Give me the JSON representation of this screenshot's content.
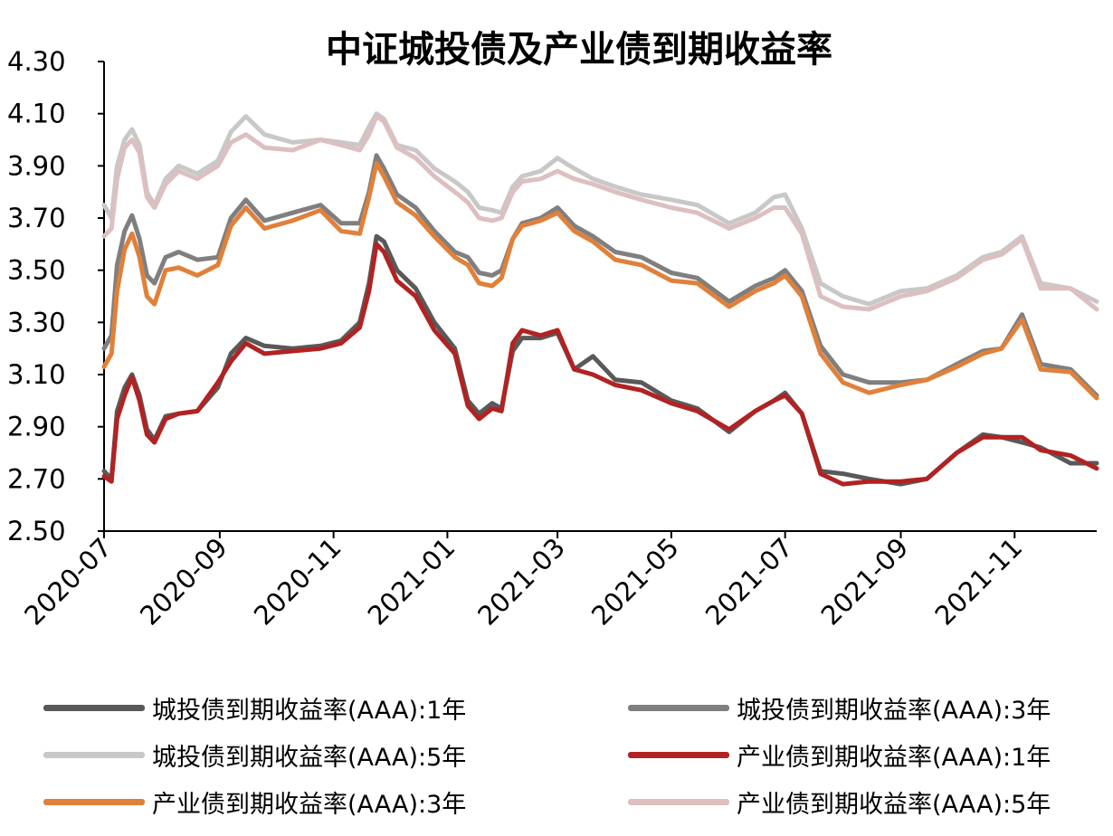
{
  "chart_data": {
    "type": "line",
    "title": "中证城投债及产业债到期收益率",
    "xlabel": "",
    "ylabel": "",
    "ylim": [
      2.5,
      4.3
    ],
    "yticks": [
      "2.50",
      "2.70",
      "2.90",
      "3.10",
      "3.30",
      "3.50",
      "3.70",
      "3.90",
      "4.10",
      "4.30"
    ],
    "xticks": [
      "2020-07",
      "2020-09",
      "2020-11",
      "2021-01",
      "2021-03",
      "2021-05",
      "2021-07",
      "2021-09",
      "2021-11"
    ],
    "xrange": [
      "2020-07-01",
      "2021-12-15"
    ],
    "grid": false,
    "legend_position": "bottom",
    "series": [
      {
        "name": "城投债到期收益率(AAA):1年",
        "color": "#595959",
        "x": [
          "2020-07-01",
          "2020-07-05",
          "2020-07-08",
          "2020-07-12",
          "2020-07-16",
          "2020-07-20",
          "2020-07-24",
          "2020-07-28",
          "2020-08-03",
          "2020-08-10",
          "2020-08-20",
          "2020-08-31",
          "2020-09-07",
          "2020-09-15",
          "2020-09-25",
          "2020-10-10",
          "2020-10-25",
          "2020-11-05",
          "2020-11-15",
          "2020-11-20",
          "2020-11-24",
          "2020-11-28",
          "2020-12-05",
          "2020-12-15",
          "2020-12-25",
          "2021-01-05",
          "2021-01-12",
          "2021-01-18",
          "2021-01-25",
          "2021-01-30",
          "2021-02-05",
          "2021-02-10",
          "2021-02-20",
          "2021-03-01",
          "2021-03-10",
          "2021-03-20",
          "2021-04-01",
          "2021-04-15",
          "2021-05-01",
          "2021-05-15",
          "2021-06-01",
          "2021-06-15",
          "2021-06-25",
          "2021-07-01",
          "2021-07-10",
          "2021-07-20",
          "2021-08-01",
          "2021-08-15",
          "2021-09-01",
          "2021-09-15",
          "2021-10-01",
          "2021-10-15",
          "2021-10-25",
          "2021-11-05",
          "2021-11-15",
          "2021-12-01",
          "2021-12-15"
        ],
        "y": [
          2.73,
          2.7,
          2.96,
          3.05,
          3.1,
          3.02,
          2.89,
          2.85,
          2.94,
          2.95,
          2.96,
          3.05,
          3.18,
          3.24,
          3.21,
          3.2,
          3.21,
          3.23,
          3.3,
          3.45,
          3.63,
          3.61,
          3.5,
          3.43,
          3.3,
          3.2,
          3.0,
          2.95,
          2.99,
          2.97,
          3.19,
          3.24,
          3.24,
          3.26,
          3.12,
          3.17,
          3.08,
          3.07,
          3.0,
          2.97,
          2.88,
          2.96,
          3.0,
          3.03,
          2.95,
          2.73,
          2.72,
          2.7,
          2.68,
          2.7,
          2.8,
          2.87,
          2.86,
          2.84,
          2.82,
          2.76,
          2.76
        ]
      },
      {
        "name": "城投债到期收益率(AAA):3年",
        "color": "#7f7f7f",
        "x": [
          "2020-07-01",
          "2020-07-05",
          "2020-07-08",
          "2020-07-12",
          "2020-07-16",
          "2020-07-20",
          "2020-07-24",
          "2020-07-28",
          "2020-08-03",
          "2020-08-10",
          "2020-08-20",
          "2020-08-31",
          "2020-09-07",
          "2020-09-15",
          "2020-09-25",
          "2020-10-10",
          "2020-10-25",
          "2020-11-05",
          "2020-11-15",
          "2020-11-20",
          "2020-11-24",
          "2020-11-28",
          "2020-12-05",
          "2020-12-15",
          "2020-12-25",
          "2021-01-05",
          "2021-01-12",
          "2021-01-18",
          "2021-01-25",
          "2021-01-30",
          "2021-02-05",
          "2021-02-10",
          "2021-02-20",
          "2021-03-01",
          "2021-03-10",
          "2021-03-20",
          "2021-04-01",
          "2021-04-15",
          "2021-05-01",
          "2021-05-15",
          "2021-06-01",
          "2021-06-15",
          "2021-06-25",
          "2021-07-01",
          "2021-07-10",
          "2021-07-20",
          "2021-08-01",
          "2021-08-15",
          "2021-09-01",
          "2021-09-15",
          "2021-10-01",
          "2021-10-15",
          "2021-10-25",
          "2021-11-05",
          "2021-11-15",
          "2021-12-01",
          "2021-12-15"
        ],
        "y": [
          3.2,
          3.25,
          3.52,
          3.65,
          3.71,
          3.62,
          3.48,
          3.45,
          3.55,
          3.57,
          3.54,
          3.55,
          3.7,
          3.77,
          3.69,
          3.72,
          3.75,
          3.68,
          3.68,
          3.8,
          3.94,
          3.89,
          3.79,
          3.74,
          3.65,
          3.57,
          3.55,
          3.49,
          3.48,
          3.5,
          3.62,
          3.68,
          3.7,
          3.74,
          3.67,
          3.63,
          3.57,
          3.55,
          3.49,
          3.47,
          3.38,
          3.44,
          3.47,
          3.5,
          3.42,
          3.21,
          3.1,
          3.07,
          3.07,
          3.08,
          3.14,
          3.19,
          3.2,
          3.33,
          3.14,
          3.12,
          3.02
        ]
      },
      {
        "name": "城投债到期收益率(AAA):5年",
        "color": "#c8c8c8",
        "x": [
          "2020-07-01",
          "2020-07-05",
          "2020-07-08",
          "2020-07-12",
          "2020-07-16",
          "2020-07-20",
          "2020-07-24",
          "2020-07-28",
          "2020-08-03",
          "2020-08-10",
          "2020-08-20",
          "2020-08-31",
          "2020-09-07",
          "2020-09-15",
          "2020-09-25",
          "2020-10-10",
          "2020-10-25",
          "2020-11-05",
          "2020-11-15",
          "2020-11-20",
          "2020-11-24",
          "2020-11-28",
          "2020-12-05",
          "2020-12-15",
          "2020-12-25",
          "2021-01-05",
          "2021-01-12",
          "2021-01-18",
          "2021-01-25",
          "2021-01-30",
          "2021-02-05",
          "2021-02-10",
          "2021-02-20",
          "2021-03-01",
          "2021-03-10",
          "2021-03-20",
          "2021-04-01",
          "2021-04-15",
          "2021-05-01",
          "2021-05-15",
          "2021-06-01",
          "2021-06-15",
          "2021-06-25",
          "2021-07-01",
          "2021-07-10",
          "2021-07-20",
          "2021-08-01",
          "2021-08-15",
          "2021-09-01",
          "2021-09-15",
          "2021-10-01",
          "2021-10-15",
          "2021-10-25",
          "2021-11-05",
          "2021-11-15",
          "2021-12-01",
          "2021-12-15"
        ],
        "y": [
          3.75,
          3.7,
          3.9,
          4.0,
          4.04,
          3.98,
          3.8,
          3.75,
          3.85,
          3.9,
          3.87,
          3.92,
          4.03,
          4.09,
          4.02,
          3.99,
          4.0,
          3.99,
          3.98,
          4.05,
          4.1,
          4.08,
          3.98,
          3.96,
          3.89,
          3.84,
          3.8,
          3.74,
          3.73,
          3.72,
          3.82,
          3.86,
          3.88,
          3.93,
          3.89,
          3.85,
          3.82,
          3.79,
          3.77,
          3.75,
          3.68,
          3.72,
          3.78,
          3.79,
          3.66,
          3.45,
          3.4,
          3.37,
          3.42,
          3.43,
          3.48,
          3.55,
          3.57,
          3.63,
          3.45,
          3.43,
          3.38
        ]
      },
      {
        "name": "产业债到期收益率(AAA):1年",
        "color": "#b22222",
        "x": [
          "2020-07-01",
          "2020-07-05",
          "2020-07-08",
          "2020-07-12",
          "2020-07-16",
          "2020-07-20",
          "2020-07-24",
          "2020-07-28",
          "2020-08-03",
          "2020-08-10",
          "2020-08-20",
          "2020-08-31",
          "2020-09-07",
          "2020-09-15",
          "2020-09-25",
          "2020-10-10",
          "2020-10-25",
          "2020-11-05",
          "2020-11-15",
          "2020-11-20",
          "2020-11-24",
          "2020-11-28",
          "2020-12-05",
          "2020-12-15",
          "2020-12-25",
          "2021-01-05",
          "2021-01-12",
          "2021-01-18",
          "2021-01-25",
          "2021-01-30",
          "2021-02-05",
          "2021-02-10",
          "2021-02-20",
          "2021-03-01",
          "2021-03-10",
          "2021-03-20",
          "2021-04-01",
          "2021-04-15",
          "2021-05-01",
          "2021-05-15",
          "2021-06-01",
          "2021-06-15",
          "2021-06-25",
          "2021-07-01",
          "2021-07-10",
          "2021-07-20",
          "2021-08-01",
          "2021-08-15",
          "2021-09-01",
          "2021-09-15",
          "2021-10-01",
          "2021-10-15",
          "2021-10-25",
          "2021-11-05",
          "2021-11-15",
          "2021-12-01",
          "2021-12-15"
        ],
        "y": [
          2.71,
          2.69,
          2.93,
          3.02,
          3.09,
          3.0,
          2.87,
          2.84,
          2.93,
          2.95,
          2.96,
          3.07,
          3.15,
          3.22,
          3.18,
          3.19,
          3.2,
          3.22,
          3.28,
          3.42,
          3.6,
          3.57,
          3.46,
          3.4,
          3.27,
          3.18,
          2.98,
          2.93,
          2.97,
          2.96,
          3.22,
          3.27,
          3.25,
          3.27,
          3.12,
          3.1,
          3.06,
          3.04,
          2.99,
          2.96,
          2.89,
          2.96,
          3.0,
          3.02,
          2.95,
          2.72,
          2.68,
          2.69,
          2.69,
          2.7,
          2.8,
          2.86,
          2.86,
          2.86,
          2.81,
          2.79,
          2.74
        ]
      },
      {
        "name": "产业债到期收益率(AAA):3年",
        "color": "#e0803a",
        "x": [
          "2020-07-01",
          "2020-07-05",
          "2020-07-08",
          "2020-07-12",
          "2020-07-16",
          "2020-07-20",
          "2020-07-24",
          "2020-07-28",
          "2020-08-03",
          "2020-08-10",
          "2020-08-20",
          "2020-08-31",
          "2020-09-07",
          "2020-09-15",
          "2020-09-25",
          "2020-10-10",
          "2020-10-25",
          "2020-11-05",
          "2020-11-15",
          "2020-11-20",
          "2020-11-24",
          "2020-11-28",
          "2020-12-05",
          "2020-12-15",
          "2020-12-25",
          "2021-01-05",
          "2021-01-12",
          "2021-01-18",
          "2021-01-25",
          "2021-01-30",
          "2021-02-05",
          "2021-02-10",
          "2021-02-20",
          "2021-03-01",
          "2021-03-10",
          "2021-03-20",
          "2021-04-01",
          "2021-04-15",
          "2021-05-01",
          "2021-05-15",
          "2021-06-01",
          "2021-06-15",
          "2021-06-25",
          "2021-07-01",
          "2021-07-10",
          "2021-07-20",
          "2021-08-01",
          "2021-08-15",
          "2021-09-01",
          "2021-09-15",
          "2021-10-01",
          "2021-10-15",
          "2021-10-25",
          "2021-11-05",
          "2021-11-15",
          "2021-12-01",
          "2021-12-15"
        ],
        "y": [
          3.13,
          3.18,
          3.42,
          3.58,
          3.64,
          3.55,
          3.4,
          3.37,
          3.5,
          3.51,
          3.48,
          3.52,
          3.67,
          3.74,
          3.66,
          3.69,
          3.73,
          3.65,
          3.64,
          3.78,
          3.91,
          3.86,
          3.76,
          3.71,
          3.63,
          3.55,
          3.52,
          3.45,
          3.44,
          3.47,
          3.62,
          3.67,
          3.69,
          3.72,
          3.65,
          3.61,
          3.54,
          3.52,
          3.46,
          3.45,
          3.36,
          3.42,
          3.45,
          3.48,
          3.4,
          3.18,
          3.07,
          3.03,
          3.06,
          3.08,
          3.13,
          3.18,
          3.2,
          3.31,
          3.12,
          3.11,
          3.01
        ]
      },
      {
        "name": "产业债到期收益率(AAA):5年",
        "color": "#ddbfbf",
        "x": [
          "2020-07-01",
          "2020-07-05",
          "2020-07-08",
          "2020-07-12",
          "2020-07-16",
          "2020-07-20",
          "2020-07-24",
          "2020-07-28",
          "2020-08-03",
          "2020-08-10",
          "2020-08-20",
          "2020-08-31",
          "2020-09-07",
          "2020-09-15",
          "2020-09-25",
          "2020-10-10",
          "2020-10-25",
          "2020-11-05",
          "2020-11-15",
          "2020-11-20",
          "2020-11-24",
          "2020-11-28",
          "2020-12-05",
          "2020-12-15",
          "2020-12-25",
          "2021-01-05",
          "2021-01-12",
          "2021-01-18",
          "2021-01-25",
          "2021-01-30",
          "2021-02-05",
          "2021-02-10",
          "2021-02-20",
          "2021-03-01",
          "2021-03-10",
          "2021-03-20",
          "2021-04-01",
          "2021-04-15",
          "2021-05-01",
          "2021-05-15",
          "2021-06-01",
          "2021-06-15",
          "2021-06-25",
          "2021-07-01",
          "2021-07-10",
          "2021-07-20",
          "2021-08-01",
          "2021-08-15",
          "2021-09-01",
          "2021-09-15",
          "2021-10-01",
          "2021-10-15",
          "2021-10-25",
          "2021-11-05",
          "2021-11-15",
          "2021-12-01",
          "2021-12-15"
        ],
        "y": [
          3.63,
          3.66,
          3.85,
          3.97,
          4.0,
          3.95,
          3.78,
          3.74,
          3.83,
          3.88,
          3.85,
          3.9,
          3.99,
          4.02,
          3.97,
          3.96,
          4.0,
          3.98,
          3.96,
          4.02,
          4.09,
          4.07,
          3.97,
          3.93,
          3.86,
          3.8,
          3.76,
          3.7,
          3.69,
          3.7,
          3.8,
          3.84,
          3.85,
          3.88,
          3.85,
          3.83,
          3.8,
          3.77,
          3.74,
          3.72,
          3.66,
          3.7,
          3.74,
          3.74,
          3.64,
          3.4,
          3.36,
          3.35,
          3.4,
          3.42,
          3.47,
          3.54,
          3.56,
          3.62,
          3.43,
          3.43,
          3.35
        ]
      }
    ]
  }
}
